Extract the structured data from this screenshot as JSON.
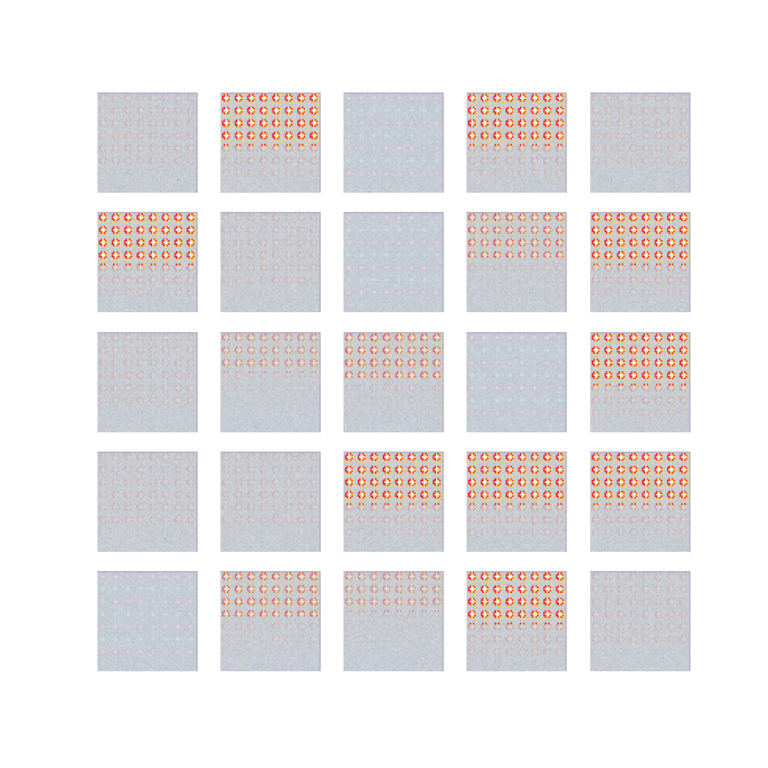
{
  "grid": {
    "rows": 5,
    "cols": 5,
    "tiles": [
      {
        "pattern": "faint"
      },
      {
        "pattern": "strong"
      },
      {
        "pattern": "pastel"
      },
      {
        "pattern": "strong"
      },
      {
        "pattern": "faint"
      },
      {
        "pattern": "strong"
      },
      {
        "pattern": "faint"
      },
      {
        "pattern": "pastel"
      },
      {
        "pattern": "medium"
      },
      {
        "pattern": "strong"
      },
      {
        "pattern": "faint"
      },
      {
        "pattern": "weak"
      },
      {
        "pattern": "medium"
      },
      {
        "pattern": "pastel"
      },
      {
        "pattern": "strong"
      },
      {
        "pattern": "faint"
      },
      {
        "pattern": "faint"
      },
      {
        "pattern": "strong"
      },
      {
        "pattern": "strong"
      },
      {
        "pattern": "strong"
      },
      {
        "pattern": "pastel"
      },
      {
        "pattern": "medium"
      },
      {
        "pattern": "weak"
      },
      {
        "pattern": "strong"
      },
      {
        "pattern": "faint"
      }
    ]
  },
  "palette": {
    "background": "#ffffff",
    "tile_base": "#c7ccd2",
    "red": "#f2302e",
    "yellow": "#f8d84a",
    "white": "#f4f4f6",
    "pink": "#f2a0c8",
    "cyan": "#9fe0e6",
    "gray_blue": "#b8c0cc",
    "lilac": "#a89ac8"
  }
}
